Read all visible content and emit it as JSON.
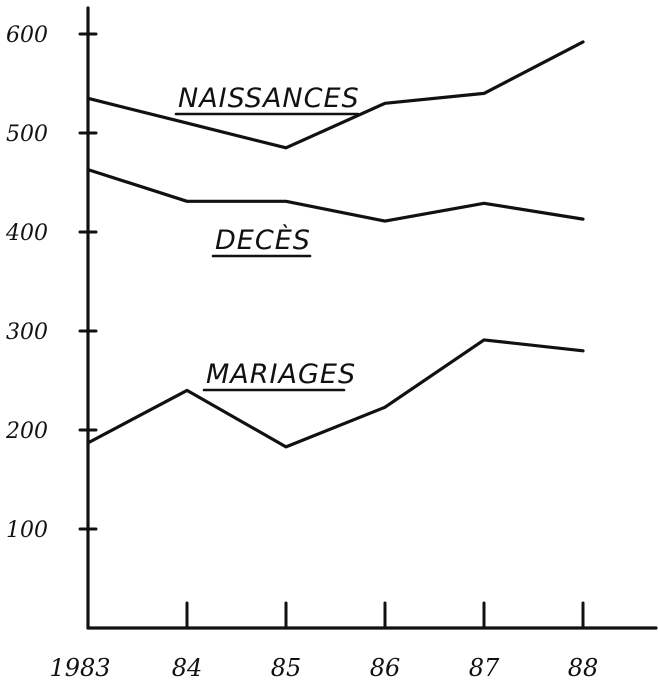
{
  "chart_data": {
    "type": "line",
    "title": "",
    "xlabel": "",
    "ylabel": "",
    "categories": [
      "1983",
      "84",
      "85",
      "86",
      "87",
      "88"
    ],
    "yticks": [
      "100",
      "200",
      "300",
      "400",
      "500",
      "600"
    ],
    "ylim": [
      0,
      600
    ],
    "grid": false,
    "series": [
      {
        "name": "NAISSANCES",
        "values": [
          535,
          510,
          485,
          530,
          540,
          592
        ]
      },
      {
        "name": "DECÈS",
        "values": [
          463,
          431,
          431,
          411,
          429,
          413
        ]
      },
      {
        "name": "MARIAGES",
        "values": [
          187,
          240,
          183,
          223,
          291,
          280
        ]
      }
    ]
  }
}
